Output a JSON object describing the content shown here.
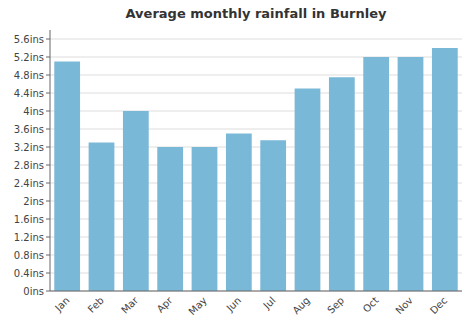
{
  "chart_data": {
    "type": "bar",
    "title": "Average monthly rainfall in Burnley",
    "categories": [
      "Jan",
      "Feb",
      "Mar",
      "Apr",
      "May",
      "Jun",
      "Jul",
      "Aug",
      "Sep",
      "Oct",
      "Nov",
      "Dec"
    ],
    "values": [
      5.1,
      3.3,
      4.0,
      3.2,
      3.2,
      3.5,
      3.35,
      4.5,
      4.75,
      5.2,
      5.2,
      5.4
    ],
    "color": "#7ab8d8",
    "ylim": [
      0,
      5.8
    ],
    "yticks": [
      {
        "value": 0,
        "label": "0ins"
      },
      {
        "value": 0.4,
        "label": "0.4ins"
      },
      {
        "value": 0.8,
        "label": "0.8ins"
      },
      {
        "value": 1.2,
        "label": "1.2ins"
      },
      {
        "value": 1.6,
        "label": "1.6ins"
      },
      {
        "value": 2.0,
        "label": "2ins"
      },
      {
        "value": 2.4,
        "label": "2.4ins"
      },
      {
        "value": 2.8,
        "label": "2.8ins"
      },
      {
        "value": 3.2,
        "label": "3.2ins"
      },
      {
        "value": 3.6,
        "label": "3.6ins"
      },
      {
        "value": 4.0,
        "label": "4ins"
      },
      {
        "value": 4.4,
        "label": "4.4ins"
      },
      {
        "value": 4.8,
        "label": "4.8ins"
      },
      {
        "value": 5.2,
        "label": "5.2ins"
      },
      {
        "value": 5.6,
        "label": "5.6ins"
      }
    ],
    "grid": true
  }
}
